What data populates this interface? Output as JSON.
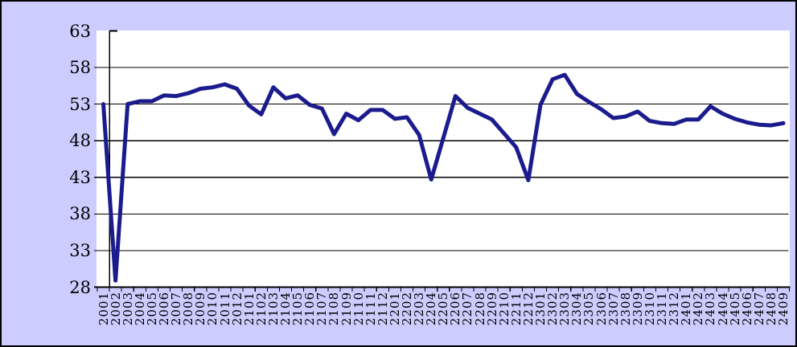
{
  "chart_data": {
    "type": "line",
    "x_labels": [
      "2001",
      "2002",
      "2003",
      "2004",
      "2005",
      "2006",
      "2007",
      "2008",
      "2009",
      "2010",
      "2011",
      "2012",
      "2101",
      "2102",
      "2103",
      "2104",
      "2105",
      "2106",
      "2107",
      "2108",
      "2109",
      "2110",
      "2111",
      "2112",
      "2201",
      "2202",
      "2203",
      "2204",
      "2205",
      "2206",
      "2207",
      "2208",
      "2209",
      "2210",
      "2211",
      "2212",
      "2301",
      "2302",
      "2303",
      "2304",
      "2305",
      "2306",
      "2307",
      "2308",
      "2309",
      "2310",
      "2311",
      "2312",
      "2401",
      "2402",
      "2403",
      "2404",
      "2405",
      "2406",
      "2407",
      "2408",
      "2409"
    ],
    "values": [
      53.0,
      28.9,
      53.0,
      53.4,
      53.4,
      54.2,
      54.1,
      54.5,
      55.1,
      55.3,
      55.7,
      55.1,
      52.8,
      51.6,
      55.3,
      53.8,
      54.2,
      52.9,
      52.4,
      48.9,
      51.7,
      50.8,
      52.2,
      52.2,
      51.0,
      51.2,
      48.8,
      42.7,
      48.4,
      54.1,
      52.5,
      51.7,
      50.9,
      49.0,
      47.1,
      42.6,
      52.9,
      56.4,
      57.0,
      54.4,
      53.3,
      52.3,
      51.1,
      51.3,
      52.0,
      50.7,
      50.4,
      50.3,
      50.9,
      50.9,
      52.7,
      51.7,
      51.0,
      50.5,
      50.2,
      50.1,
      50.4
    ],
    "yticks": [
      63,
      58,
      53,
      48,
      43,
      38,
      33,
      28
    ],
    "ylim": [
      28,
      63
    ],
    "grid": "horizontal-major-gridlines",
    "legend": "none"
  },
  "colors": {
    "background": "#ccccff",
    "plot_background": "#ffffff",
    "line": "#1b1b8e",
    "axis": "#000000",
    "gridline": "#000000",
    "label": "#000000",
    "outer_border": "#000000"
  }
}
